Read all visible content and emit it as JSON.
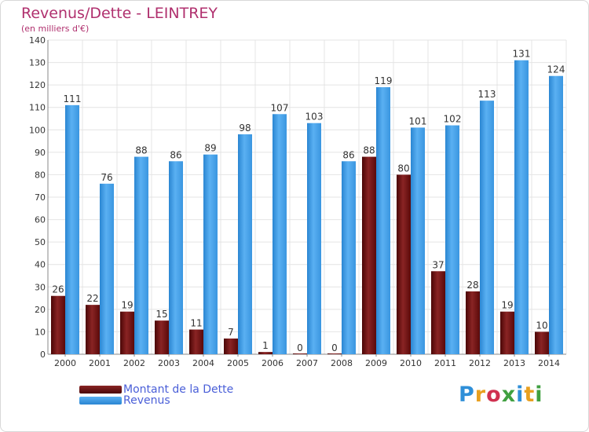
{
  "title": "Revenus/Dette - LEINTREY",
  "subtitle": "(en milliers d'€)",
  "logo_text": "Proxiti",
  "colors": {
    "dette": "#6e1010",
    "revenus": "#3d9be6",
    "title": "#b0306e",
    "legend_text": "#4a5fd8"
  },
  "chart_data": {
    "type": "bar",
    "title": "Revenus/Dette - LEINTREY",
    "subtitle": "(en milliers d'€)",
    "categories": [
      "2000",
      "2001",
      "2002",
      "2003",
      "2004",
      "2005",
      "2006",
      "2007",
      "2008",
      "2009",
      "2010",
      "2011",
      "2012",
      "2013",
      "2014"
    ],
    "series": [
      {
        "name": "Montant de la Dette",
        "values": [
          26,
          22,
          19,
          15,
          11,
          7,
          1,
          0,
          0,
          88,
          80,
          37,
          28,
          19,
          10
        ]
      },
      {
        "name": "Revenus",
        "values": [
          111,
          76,
          88,
          86,
          89,
          98,
          107,
          103,
          86,
          119,
          101,
          102,
          113,
          131,
          124
        ]
      }
    ],
    "ylim": [
      0,
      140
    ],
    "yticks": [
      0,
      10,
      20,
      30,
      40,
      50,
      60,
      70,
      80,
      90,
      100,
      110,
      120,
      130,
      140
    ],
    "grid": true,
    "legend": "bottom-left"
  }
}
